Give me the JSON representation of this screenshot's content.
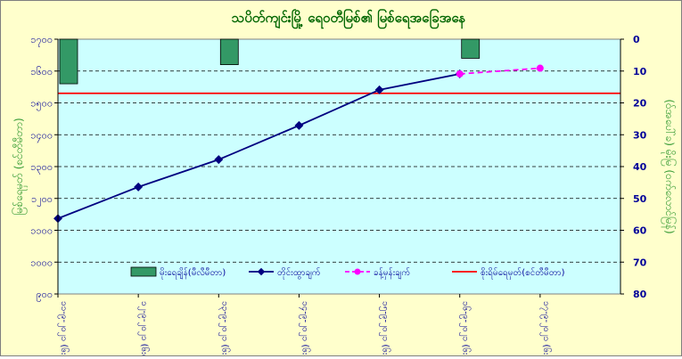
{
  "chart_data": {
    "type": "line",
    "title": "သပိတ်ကျင်းမြို့ ရေ၀တီမြစ်၏ မြစ်ရေအခြေအနေ",
    "ylabel_left": "မြစ်ရေမှတ် (စင်တီမီတာ)",
    "ylabel_right": "(ဝ်အပေါ်ခ) မိုးမြ (ဝက်လောင်မြန်)",
    "left_axis": {
      "min": 900,
      "max": 1700,
      "ticks": [
        900,
        1000,
        1100,
        1200,
        1300,
        1400,
        1500,
        1600,
        1700
      ],
      "tick_labels": [
        "၉၀၀",
        "၁၀၀၀",
        "၁၁၀၀",
        "၁၂၀၀",
        "၁၃၀၀",
        "၁၄၀၀",
        "၁၅၀၀",
        "၁၆၀၀",
        "၁၇၀၀"
      ]
    },
    "right_axis": {
      "min": 0,
      "max": 80,
      "reversed": true,
      "ticks": [
        0,
        10,
        20,
        30,
        40,
        50,
        60,
        70,
        80
      ],
      "tick_labels": [
        "0",
        "10",
        "20",
        "30",
        "40",
        "50",
        "60",
        "70",
        "80"
      ]
    },
    "grid": true,
    "legend_position": "bottom",
    "categories": [
      "၁၁-၉-၂၀၂၁ (၆း၀၀)",
      "၁၂-၉-၂၀၂၁ (၆း၀၀)",
      "၁၃-၉-၂၀၂၁ (၆း၀၀)",
      "၁၄-၉-၂၀၂၁ (၆း၀၀)",
      "၁၅-၉-၂၀၂၁ (၆း၀၀)",
      "၁၆-၉-၂၀၂၁ (၆း၀၀)",
      "၁၇-၉-၂၀၂၁ (၆း၀၀)"
    ],
    "series": [
      {
        "name": "မိုးရေချိန်(မီလီမီတာ)",
        "kind": "bar",
        "axis": "right",
        "color": "#339966",
        "values": [
          14,
          0,
          8,
          0,
          0,
          6,
          0
        ]
      },
      {
        "name": "တိုင်းထွာချက်",
        "kind": "line",
        "axis": "left",
        "color": "#000080",
        "values": [
          1137,
          1236,
          1322,
          1429,
          1541,
          1591,
          null
        ]
      },
      {
        "name": "ခန့်မှန်းချက်",
        "kind": "line",
        "axis": "left",
        "color": "#ff00ff",
        "dashed": true,
        "values": [
          null,
          null,
          null,
          null,
          null,
          1591,
          1609
        ]
      },
      {
        "name": "စိုးရိမ်ရေမှတ်(စင်တီမီတာ)",
        "kind": "hline",
        "axis": "left",
        "color": "#ff0000",
        "value": 1530
      }
    ]
  }
}
